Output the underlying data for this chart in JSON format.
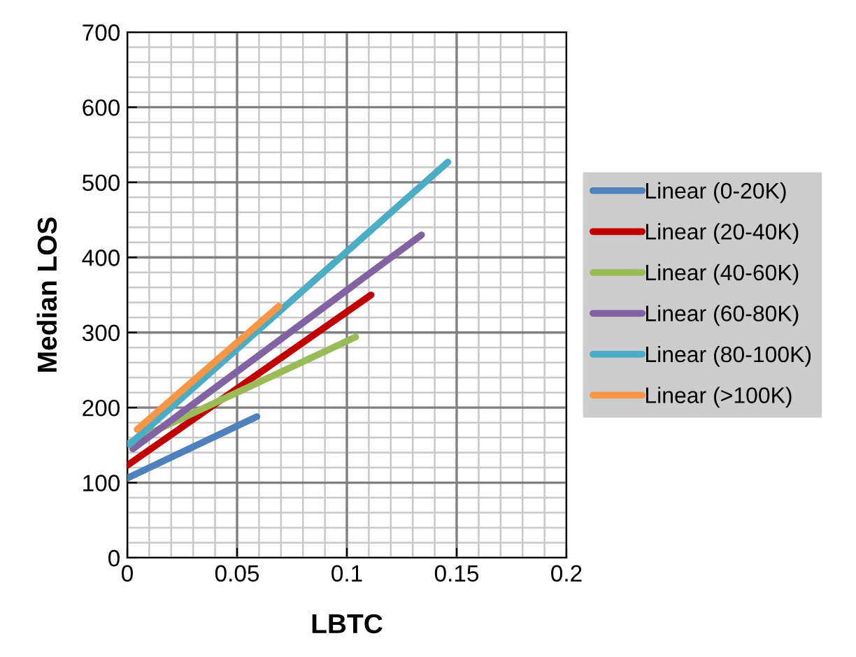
{
  "chart_data": {
    "type": "line",
    "xlabel": "LBTC",
    "ylabel": "Median LOS",
    "xlim": [
      0,
      0.2
    ],
    "xticks": [
      {
        "value": 0,
        "label": "0"
      },
      0.05,
      0.1,
      0.15,
      0.2
    ],
    "ylim": [
      0,
      700
    ],
    "yticks": [
      0,
      100,
      200,
      300,
      400,
      500,
      600,
      700
    ],
    "grid": true,
    "legend": "right",
    "marker": "none",
    "line_style": "solid",
    "series": [
      {
        "name": "Linear (0-20K)",
        "color": "#4f81bd",
        "x": [
          0,
          0.059
        ],
        "values": [
          106,
          188
        ]
      },
      {
        "name": "Linear (20-40K)",
        "color": "#c00000",
        "x": [
          0,
          0.111
        ],
        "values": [
          123,
          350
        ]
      },
      {
        "name": "Linear (40-60K)",
        "color": "#9bbb59",
        "x": [
          0.001,
          0.104
        ],
        "values": [
          153,
          294
        ]
      },
      {
        "name": "Linear (60-80K)",
        "color": "#8064a2",
        "x": [
          0.0025,
          0.134
        ],
        "values": [
          145,
          430
        ]
      },
      {
        "name": "Linear (80-100K)",
        "color": "#4bacc6",
        "x": [
          0.001,
          0.146
        ],
        "values": [
          151,
          527
        ]
      },
      {
        "name": "Linear (>100K)",
        "color": "#f79646",
        "x": [
          0.0045,
          0.069
        ],
        "values": [
          171,
          335
        ]
      }
    ]
  }
}
